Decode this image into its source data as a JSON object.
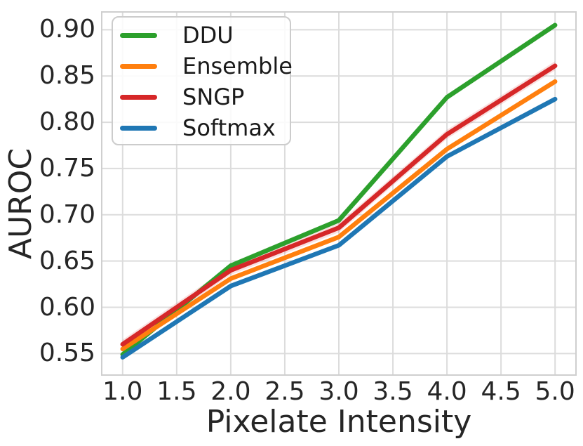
{
  "chart_data": {
    "type": "line",
    "x": [
      1.0,
      2.0,
      3.0,
      4.0,
      5.0
    ],
    "series": [
      {
        "name": "DDU",
        "color": "#2ca02c",
        "values": [
          0.549,
          0.645,
          0.694,
          0.827,
          0.905
        ],
        "band_delta": 0
      },
      {
        "name": "Ensemble",
        "color": "#ff7f0e",
        "values": [
          0.555,
          0.631,
          0.676,
          0.771,
          0.844
        ],
        "band_delta": 0
      },
      {
        "name": "SNGP",
        "color": "#d62728",
        "values": [
          0.56,
          0.64,
          0.686,
          0.787,
          0.861
        ],
        "band_delta": 0.005
      },
      {
        "name": "Softmax",
        "color": "#1f77b4",
        "values": [
          0.546,
          0.623,
          0.667,
          0.763,
          0.825
        ],
        "band_delta": 0
      }
    ],
    "title": "",
    "xlabel": "Pixelate Intensity",
    "ylabel": "AUROC",
    "xlim": [
      0.8,
      5.2
    ],
    "ylim": [
      0.526,
      0.92
    ],
    "xticks": [
      1.0,
      1.5,
      2.0,
      2.5,
      3.0,
      3.5,
      4.0,
      4.5,
      5.0
    ],
    "xtick_labels": [
      "1.0",
      "1.5",
      "2.0",
      "2.5",
      "3.0",
      "3.5",
      "4.0",
      "4.5",
      "5.0"
    ],
    "yticks": [
      0.55,
      0.6,
      0.65,
      0.7,
      0.75,
      0.8,
      0.85,
      0.9
    ],
    "ytick_labels": [
      "0.55",
      "0.60",
      "0.65",
      "0.70",
      "0.75",
      "0.80",
      "0.85",
      "0.90"
    ],
    "grid": true,
    "legend_position": "upper-left"
  },
  "style": {
    "grid_color": "#dcdcdc",
    "spine_color": "#cfcfcf",
    "text_color": "#262626",
    "background": "#ffffff",
    "line_width": 6.5
  }
}
